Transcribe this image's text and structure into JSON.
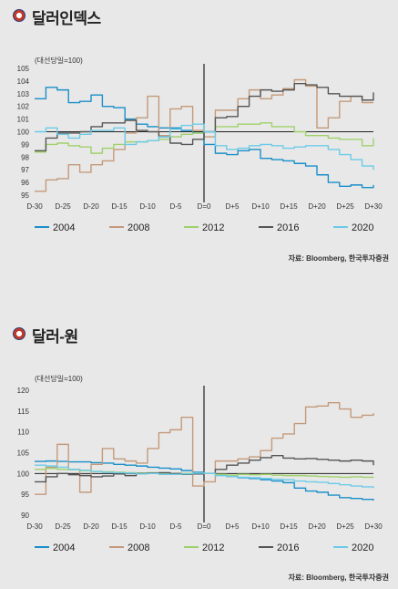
{
  "chart_data": [
    {
      "type": "line",
      "title": "달러인덱스",
      "unit_label": "(대선당일=100)",
      "source": "자료: Bloomberg, 한국투자증권",
      "ylim": [
        95,
        105
      ],
      "yticks": [
        95,
        96,
        97,
        98,
        99,
        100,
        101,
        102,
        103,
        104,
        105
      ],
      "xlim": [
        -30,
        30
      ],
      "xticks": [
        {
          "x": -30,
          "label": "D-30"
        },
        {
          "x": -25,
          "label": "D-25"
        },
        {
          "x": -20,
          "label": "D-20"
        },
        {
          "x": -15,
          "label": "D-15"
        },
        {
          "x": -10,
          "label": "D-10"
        },
        {
          "x": -5,
          "label": "D-5"
        },
        {
          "x": 0,
          "label": "D=0"
        },
        {
          "x": 5,
          "label": "D+5"
        },
        {
          "x": 10,
          "label": "D+10"
        },
        {
          "x": 15,
          "label": "D+15"
        },
        {
          "x": 20,
          "label": "D+20"
        },
        {
          "x": 25,
          "label": "D+25"
        },
        {
          "x": 30,
          "label": "D+30"
        }
      ],
      "x": [
        -30,
        -28,
        -26,
        -24,
        -22,
        -20,
        -18,
        -16,
        -14,
        -12,
        -10,
        -8,
        -6,
        -4,
        -2,
        0,
        2,
        4,
        6,
        8,
        10,
        12,
        14,
        16,
        18,
        20,
        22,
        24,
        26,
        28,
        30
      ],
      "series": [
        {
          "name": "2004",
          "color": "#1a8fc9",
          "values": [
            102.6,
            103.5,
            103.3,
            102.3,
            102.4,
            102.9,
            102.0,
            101.9,
            101.0,
            100.6,
            100.4,
            100.3,
            100.3,
            100.1,
            99.9,
            99.0,
            98.3,
            98.2,
            98.5,
            98.6,
            97.9,
            97.8,
            97.7,
            97.5,
            97.3,
            96.6,
            96.0,
            95.7,
            95.8,
            95.6,
            95.8
          ]
        },
        {
          "name": "2008",
          "color": "#c49a7a",
          "values": [
            95.3,
            96.2,
            96.3,
            97.4,
            96.8,
            97.4,
            97.7,
            98.6,
            99.9,
            101.1,
            102.8,
            99.7,
            101.8,
            102.0,
            100.1,
            99.6,
            101.7,
            101.7,
            102.6,
            103.3,
            102.6,
            102.9,
            103.4,
            104.1,
            103.6,
            100.3,
            101.1,
            102.4,
            102.8,
            102.3,
            102.3
          ]
        },
        {
          "name": "2012",
          "color": "#9fd16a",
          "values": [
            98.4,
            99.0,
            99.1,
            98.9,
            98.8,
            98.3,
            98.7,
            99.0,
            99.2,
            99.2,
            99.3,
            99.4,
            99.6,
            99.8,
            99.9,
            100.0,
            100.4,
            100.4,
            100.6,
            100.6,
            100.7,
            100.4,
            100.4,
            100.0,
            99.7,
            99.7,
            99.5,
            99.4,
            99.4,
            98.9,
            99.5
          ]
        },
        {
          "name": "2016",
          "color": "#555555",
          "values": [
            98.5,
            99.5,
            99.9,
            99.9,
            100.0,
            100.4,
            100.7,
            100.7,
            100.9,
            100.1,
            100.0,
            99.6,
            99.1,
            99.0,
            99.4,
            100.0,
            101.1,
            101.2,
            102.0,
            102.8,
            103.3,
            103.2,
            103.3,
            103.8,
            103.7,
            103.5,
            103.0,
            102.8,
            102.8,
            102.5,
            103.1
          ]
        },
        {
          "name": "2020",
          "color": "#6ccbe8",
          "values": [
            100.0,
            100.3,
            99.8,
            99.5,
            99.8,
            100.1,
            100.1,
            100.3,
            99.0,
            99.2,
            99.3,
            99.6,
            100.2,
            100.5,
            100.6,
            100.0,
            98.9,
            98.6,
            98.7,
            98.9,
            99.0,
            98.9,
            98.7,
            98.8,
            98.9,
            98.9,
            98.6,
            98.2,
            97.8,
            97.3,
            97.0
          ]
        }
      ]
    },
    {
      "type": "line",
      "title": "달러-원",
      "unit_label": "(대선당일=100)",
      "source": "자료: Bloomberg, 한국투자증권",
      "ylim": [
        90,
        120
      ],
      "yticks": [
        90,
        95,
        100,
        105,
        110,
        115,
        120
      ],
      "xlim": [
        -30,
        30
      ],
      "xticks": [
        {
          "x": -30,
          "label": "D-30"
        },
        {
          "x": -25,
          "label": "D-25"
        },
        {
          "x": -20,
          "label": "D-20"
        },
        {
          "x": -15,
          "label": "D-15"
        },
        {
          "x": -10,
          "label": "D-10"
        },
        {
          "x": -5,
          "label": "D-5"
        },
        {
          "x": 0,
          "label": "D=0"
        },
        {
          "x": 5,
          "label": "D+5"
        },
        {
          "x": 10,
          "label": "D+10"
        },
        {
          "x": 15,
          "label": "D+15"
        },
        {
          "x": 20,
          "label": "D+20"
        },
        {
          "x": 25,
          "label": "D+25"
        },
        {
          "x": 30,
          "label": "D+30"
        }
      ],
      "x": [
        -30,
        -28,
        -26,
        -24,
        -22,
        -20,
        -18,
        -16,
        -14,
        -12,
        -10,
        -8,
        -6,
        -4,
        -2,
        0,
        2,
        4,
        6,
        8,
        10,
        12,
        14,
        16,
        18,
        20,
        22,
        24,
        26,
        28,
        30
      ],
      "series": [
        {
          "name": "2004",
          "color": "#1a8fc9",
          "values": [
            102.9,
            103.0,
            102.9,
            102.8,
            102.8,
            102.6,
            102.5,
            102.2,
            102.0,
            101.8,
            101.5,
            101.3,
            101.1,
            100.7,
            100.3,
            100.0,
            99.6,
            99.3,
            99.0,
            98.8,
            98.5,
            98.2,
            97.8,
            96.5,
            95.8,
            95.5,
            94.8,
            94.2,
            94.0,
            93.8,
            93.5
          ]
        },
        {
          "name": "2008",
          "color": "#c49a7a",
          "values": [
            95.0,
            101.5,
            107.0,
            101.0,
            95.5,
            102.2,
            106.0,
            103.5,
            103.0,
            102.5,
            106.0,
            109.8,
            110.5,
            113.5,
            97.0,
            98.0,
            103.0,
            103.0,
            103.5,
            104.0,
            105.5,
            108.5,
            109.5,
            112.0,
            116.0,
            116.2,
            117.0,
            115.5,
            113.5,
            114.0,
            114.5
          ]
        },
        {
          "name": "2012",
          "color": "#9fd16a",
          "values": [
            101.0,
            101.2,
            101.0,
            100.9,
            100.7,
            100.5,
            100.4,
            100.3,
            100.2,
            100.1,
            100.2,
            100.1,
            100.0,
            100.0,
            100.0,
            100.0,
            99.8,
            99.6,
            99.8,
            99.7,
            99.8,
            99.6,
            99.5,
            99.5,
            99.4,
            99.3,
            99.2,
            99.1,
            99.2,
            99.1,
            99.0
          ]
        },
        {
          "name": "2016",
          "color": "#555555",
          "values": [
            98.0,
            99.2,
            100.0,
            99.7,
            99.5,
            99.2,
            99.4,
            99.9,
            99.5,
            100.0,
            100.1,
            100.2,
            100.0,
            99.8,
            99.9,
            100.0,
            101.0,
            102.0,
            102.5,
            103.2,
            103.8,
            104.3,
            103.7,
            103.5,
            103.6,
            103.4,
            103.2,
            103.0,
            103.2,
            103.0,
            102.0
          ]
        },
        {
          "name": "2020",
          "color": "#6ccbe8",
          "values": [
            102.0,
            101.8,
            101.5,
            101.0,
            100.8,
            100.5,
            100.3,
            100.2,
            100.1,
            99.9,
            100.0,
            99.8,
            99.8,
            99.9,
            100.1,
            100.0,
            99.5,
            99.3,
            99.1,
            99.0,
            98.8,
            98.6,
            98.5,
            98.2,
            98.0,
            97.9,
            97.6,
            97.3,
            97.0,
            96.8,
            96.5
          ]
        }
      ]
    }
  ]
}
